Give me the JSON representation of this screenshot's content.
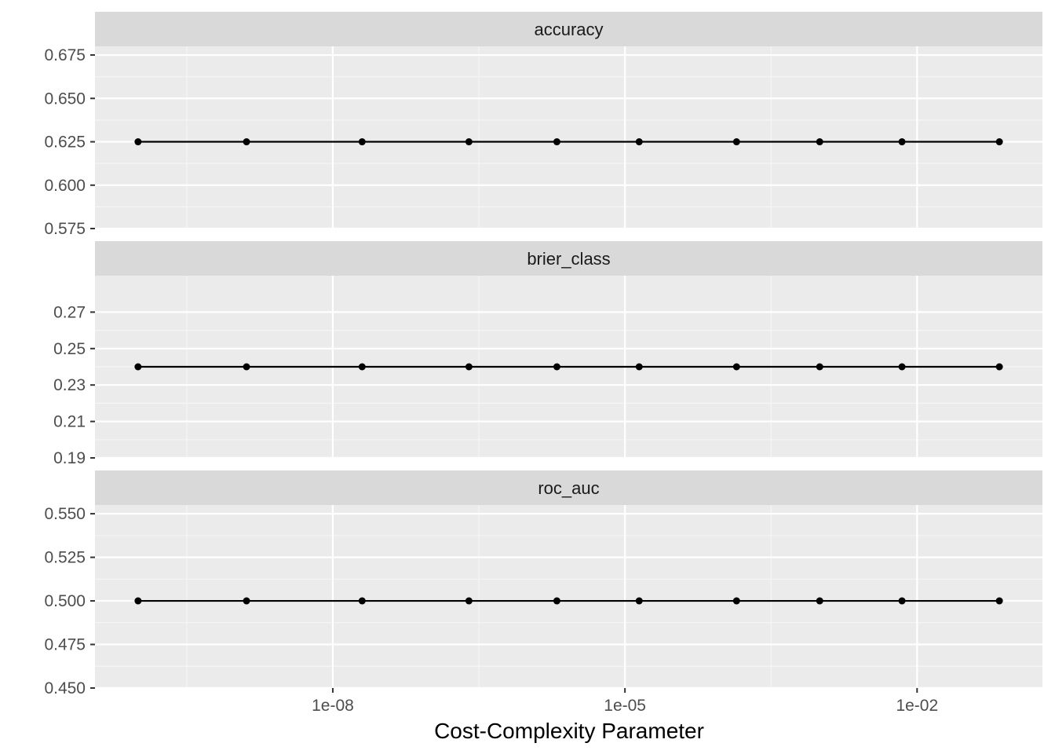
{
  "chart_data": {
    "type": "line",
    "xlabel": "Cost-Complexity Parameter",
    "x_scale": "log10",
    "x_ticks": [
      1e-08,
      1e-05,
      0.01
    ],
    "x_tick_labels": [
      "1e-08",
      "1e-05",
      "1e-02"
    ],
    "x": [
      1e-10,
      1.3e-09,
      2e-08,
      2.5e-07,
      2e-06,
      1.4e-05,
      0.00014,
      0.001,
      0.007,
      0.07
    ],
    "grid": true,
    "panels": [
      {
        "strip": "accuracy",
        "ylim": [
          0.575,
          0.68
        ],
        "y_ticks": [
          0.575,
          0.6,
          0.625,
          0.65,
          0.675
        ],
        "y_tick_labels": [
          "0.575",
          "0.600",
          "0.625",
          "0.650",
          "0.675"
        ],
        "values": [
          0.625,
          0.625,
          0.625,
          0.625,
          0.625,
          0.625,
          0.625,
          0.625,
          0.625,
          0.625
        ]
      },
      {
        "strip": "brier_class",
        "ylim": [
          0.19,
          0.29
        ],
        "y_ticks": [
          0.19,
          0.21,
          0.23,
          0.25,
          0.27
        ],
        "y_tick_labels": [
          "0.19",
          "0.21",
          "0.23",
          "0.25",
          "0.27"
        ],
        "values": [
          0.24,
          0.24,
          0.24,
          0.24,
          0.24,
          0.24,
          0.24,
          0.24,
          0.24,
          0.24
        ]
      },
      {
        "strip": "roc_auc",
        "ylim": [
          0.45,
          0.555
        ],
        "y_ticks": [
          0.45,
          0.475,
          0.5,
          0.525,
          0.55
        ],
        "y_tick_labels": [
          "0.450",
          "0.475",
          "0.500",
          "0.525",
          "0.550"
        ],
        "values": [
          0.5,
          0.5,
          0.5,
          0.5,
          0.5,
          0.5,
          0.5,
          0.5,
          0.5,
          0.5
        ]
      }
    ]
  }
}
